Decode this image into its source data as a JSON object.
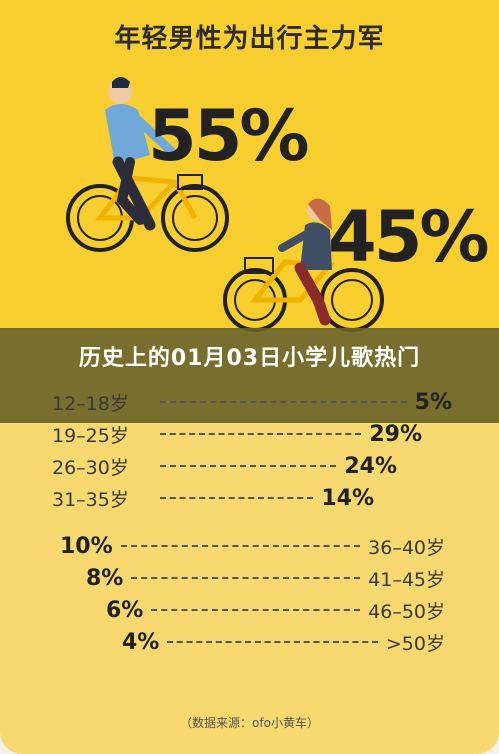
{
  "title": "年轻男性为出行主力军",
  "male_pct": "55%",
  "female_pct": "45%",
  "overlay_text": "历史上的01月03日小学儿歌热门",
  "rows_upper": [
    {
      "age": "12–18岁",
      "value": "5%"
    },
    {
      "age": "19–25岁",
      "value": "29%"
    },
    {
      "age": "26–30岁",
      "value": "24%"
    },
    {
      "age": "31–35岁",
      "value": "14%"
    }
  ],
  "rows_lower": [
    {
      "value": "10%",
      "age": "36–40岁"
    },
    {
      "value": "8%",
      "age": "41–45岁"
    },
    {
      "value": "6%",
      "age": "46–50岁"
    },
    {
      "value": "4%",
      "age": ">50岁"
    }
  ],
  "source": "（数据来源：ofo小黄车）",
  "colors": {
    "yellow": "#f8cf2e",
    "light_yellow": "#f7d96f",
    "overlay": "#696226"
  }
}
